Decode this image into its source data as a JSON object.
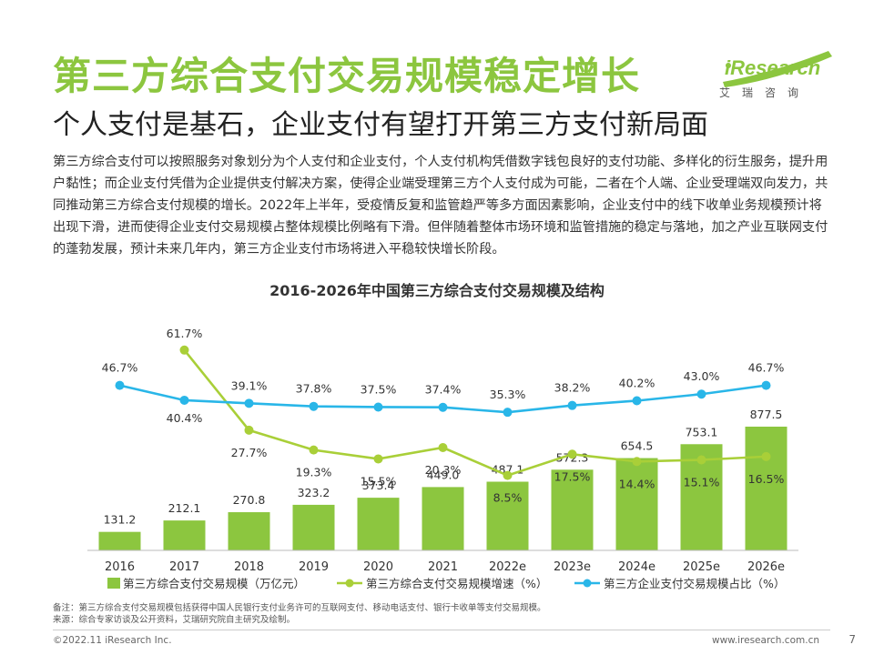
{
  "header": {
    "title": "第三方综合支付交易规模稳定增长",
    "subtitle": "个人支付是基石，企业支付有望打开第三方支付新局面"
  },
  "logo": {
    "text": "iResearch",
    "sub": "艾瑞咨询"
  },
  "description": "第三方综合支付可以按照服务对象划分为个人支付和企业支付，个人支付机构凭借数字钱包良好的支付功能、多样化的衍生服务，提升用户黏性；而企业支付凭借为企业提供支付解决方案，使得企业端受理第三方个人支付成为可能，二者在个人端、企业受理端双向发力，共同推动第三方综合支付规模的增长。2022年上半年，受疫情反复和监管趋严等多方面因素影响，企业支付中的线下收单业务规模预计将出现下滑，进而使得企业支付交易规模占整体规模比例略有下滑。但伴随着整体市场环境和监管措施的稳定与落地，加之产业互联网支付的蓬勃发展，预计未来几年内，第三方企业支付市场将进入平稳较快增长阶段。",
  "colors": {
    "bar": "#8cc63f",
    "growth": "#a9cf38",
    "share": "#29b6e8",
    "title": "#8cc63f"
  },
  "chart_data": {
    "type": "bar",
    "title": "2016-2026年中国第三方综合支付交易规模及结构",
    "categories": [
      "2016",
      "2017",
      "2018",
      "2019",
      "2020",
      "2021",
      "2022e",
      "2023e",
      "2024e",
      "2025e",
      "2026e"
    ],
    "series": [
      {
        "name": "第三方综合支付交易规模（万亿元）",
        "type": "bar",
        "values": [
          131.2,
          212.1,
          270.8,
          323.2,
          373.4,
          449.0,
          487.1,
          572.3,
          654.5,
          753.1,
          877.5
        ],
        "labels": [
          "131.2",
          "212.1",
          "270.8",
          "323.2",
          "373.4",
          "449.0",
          "487.1",
          "572.3",
          "654.5",
          "753.1",
          "877.5"
        ]
      },
      {
        "name": "第三方综合支付交易规模增速（%）",
        "type": "line",
        "values": [
          null,
          61.7,
          27.7,
          19.3,
          15.5,
          20.3,
          8.5,
          17.5,
          14.4,
          15.1,
          16.5
        ],
        "labels": [
          "",
          "61.7%",
          "27.7%",
          "19.3%",
          "15.5%",
          "20.3%",
          "8.5%",
          "17.5%",
          "14.4%",
          "15.1%",
          "16.5%"
        ]
      },
      {
        "name": "第三方企业支付交易规模占比（%）",
        "type": "line",
        "values": [
          46.7,
          40.4,
          39.1,
          37.8,
          37.5,
          37.4,
          35.3,
          38.2,
          40.2,
          43.0,
          46.7
        ],
        "labels": [
          "46.7%",
          "40.4%",
          "39.1%",
          "37.8%",
          "37.5%",
          "37.4%",
          "35.3%",
          "38.2%",
          "40.2%",
          "43.0%",
          "46.7%"
        ]
      }
    ],
    "xlabel": "",
    "ylabel": "",
    "legend_position": "bottom"
  },
  "notes": {
    "note": "备注：第三方综合支付交易规模包括获得中国人民银行支付业务许可的互联网支付、移动电话支付、银行卡收单等支付交易规模。",
    "source": "来源：综合专家访谈及公开资料，艾瑞研究院自主研究及绘制。"
  },
  "footer": {
    "copyright": "©2022.11 iResearch Inc.",
    "url": "www.iresearch.com.cn",
    "page": "7"
  }
}
